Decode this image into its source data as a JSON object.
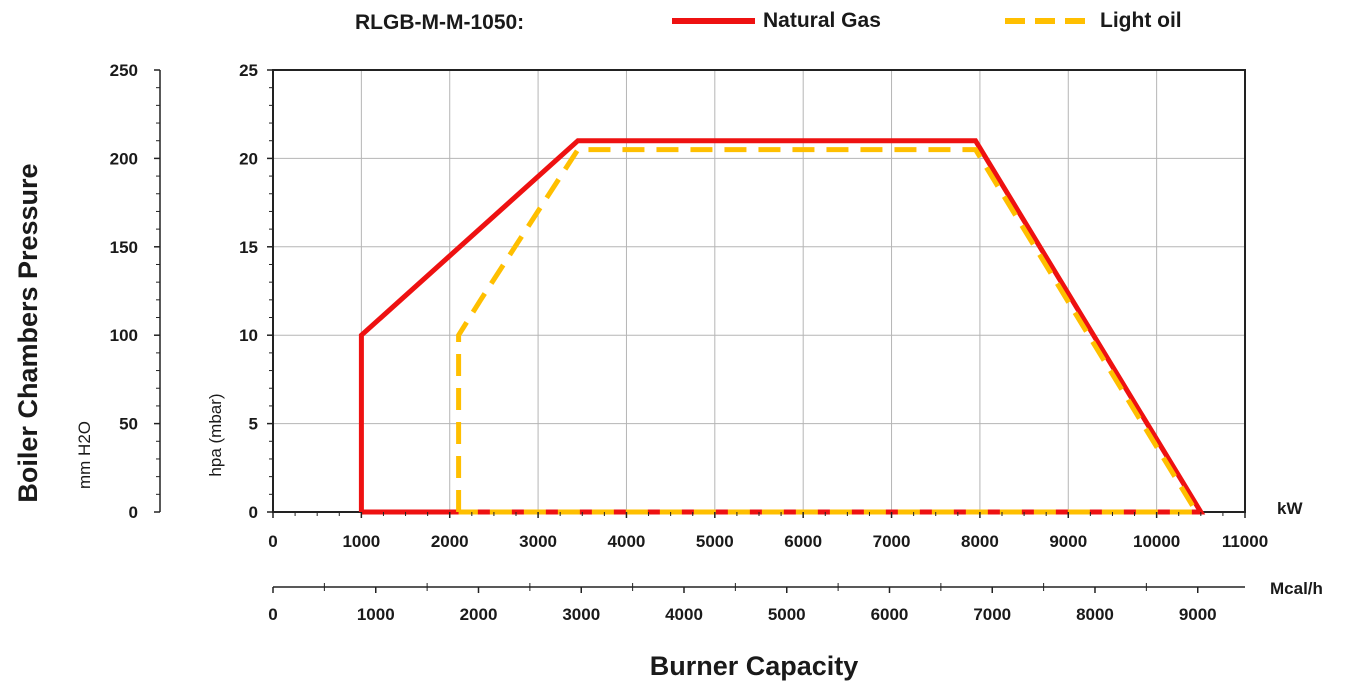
{
  "chart_data": {
    "type": "line",
    "title": "RLGB-M-M-1050:",
    "xlabel": "Burner Capacity",
    "ylabel": "Boiler Chambers Pressure",
    "x_unit": "kW",
    "x2_unit": "Mcal/h",
    "y_unit_left": "mm H2O",
    "y_unit_inner": "hpa (mbar)",
    "xlim": [
      0,
      11000
    ],
    "ylim": [
      0,
      25
    ],
    "x2lim": [
      0,
      9460
    ],
    "y2lim": [
      0,
      250
    ],
    "x_ticks": [
      "0",
      "1000",
      "2000",
      "3000",
      "4000",
      "5000",
      "6000",
      "7000",
      "8000",
      "9000",
      "10000",
      "11000"
    ],
    "y_ticks": [
      "0",
      "5",
      "10",
      "15",
      "20",
      "25"
    ],
    "x2_ticks": [
      "0",
      "1000",
      "2000",
      "3000",
      "4000",
      "5000",
      "6000",
      "7000",
      "8000",
      "9000"
    ],
    "y2_ticks": [
      "0",
      "50",
      "100",
      "150",
      "200",
      "250"
    ],
    "grid": true,
    "legend_position": "top",
    "series": [
      {
        "name": "Natural Gas",
        "color": "#ee1111",
        "style": "solid",
        "x": [
          1000,
          1000,
          3450,
          7950,
          10500,
          1000
        ],
        "y": [
          0,
          10,
          21,
          21,
          0,
          0
        ]
      },
      {
        "name": "Light oil",
        "color": "#ffbf00",
        "style": "dashed",
        "x": [
          2100,
          2100,
          2350,
          3450,
          7950,
          10450,
          2100
        ],
        "y": [
          0,
          10,
          12,
          20.5,
          20.5,
          0,
          0
        ]
      }
    ]
  }
}
